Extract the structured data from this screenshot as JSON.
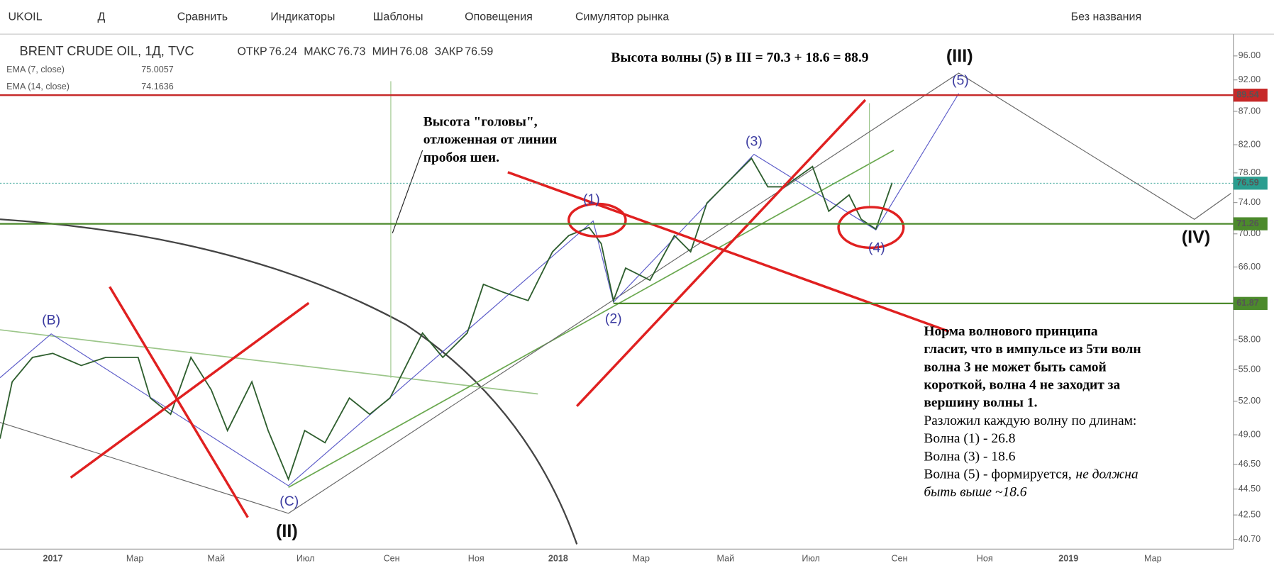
{
  "toolbar": {
    "symbol": "UKOIL",
    "interval": "Д",
    "items": [
      "Сравнить",
      "Индикаторы",
      "Шаблоны",
      "Оповещения",
      "Симулятор рынка"
    ],
    "layout_name": "Без названия"
  },
  "legend": {
    "title": "BRENT CRUDE OIL, 1Д, TVC",
    "ohlc": [
      {
        "label": "ОТКР",
        "value": "76.24"
      },
      {
        "label": "МАКС",
        "value": "76.73"
      },
      {
        "label": "МИН",
        "value": "76.08"
      },
      {
        "label": "ЗАКР",
        "value": "76.59"
      }
    ],
    "indicators": [
      {
        "name": "EMA (7, close)",
        "value": "75.0057",
        "color": "#b22222"
      },
      {
        "name": "EMA (14, close)",
        "value": "74.1636",
        "color": "#1f4f9f"
      }
    ]
  },
  "price_axis": {
    "log": true,
    "ylim": [
      40,
      99.5
    ],
    "ticks": [
      {
        "value": 96,
        "label": "96.00"
      },
      {
        "value": 92,
        "label": "92.00"
      },
      {
        "value": 87,
        "label": "87.00"
      },
      {
        "value": 82,
        "label": "82.00"
      },
      {
        "value": 78,
        "label": "78.00"
      },
      {
        "value": 74,
        "label": "74.00"
      },
      {
        "value": 70,
        "label": "70.00"
      },
      {
        "value": 66,
        "label": "66.00"
      },
      {
        "value": 58,
        "label": "58.00"
      },
      {
        "value": 55,
        "label": "55.00"
      },
      {
        "value": 52,
        "label": "52.00"
      },
      {
        "value": 49,
        "label": "49.00"
      },
      {
        "value": 46.5,
        "label": "46.50"
      },
      {
        "value": 44.5,
        "label": "44.50"
      },
      {
        "value": 42.5,
        "label": "42.50"
      },
      {
        "value": 40.7,
        "label": "40.70"
      }
    ],
    "tags": [
      {
        "value": 89.54,
        "label": "89.54",
        "color": "#c62828"
      },
      {
        "value": 76.59,
        "label": "76.59",
        "color": "#2a9d8f"
      },
      {
        "value": 71.26,
        "label": "71.26",
        "color": "#4c8a2c"
      },
      {
        "value": 61.87,
        "label": "61.87",
        "color": "#4c8a2c"
      }
    ]
  },
  "time_axis": [
    "2017",
    "Мар",
    "Май",
    "Июл",
    "Сен",
    "Ноя",
    "2018",
    "Мар",
    "Май",
    "Июл",
    "Сен",
    "Ноя",
    "2019",
    "Мар"
  ],
  "waves": [
    "(B)",
    "(C)",
    "(II)",
    "(1)",
    "(2)",
    "(3)",
    "(4)",
    "(5)",
    "(III)",
    "(IV)"
  ],
  "annotations": {
    "wave5_height": "Высота волны (5) в III = 70.3 + 18.6 = 88.9",
    "head": [
      "Высота \"головы\",",
      "отложенная от линии",
      "пробоя шеи."
    ],
    "rule": [
      "Норма волнового принципа",
      "гласит, что в импульсе из 5ти волн",
      "волна 3 не может быть самой",
      "короткой, волна 4 не заходит за",
      "вершину волны 1."
    ],
    "details": [
      "Разложил каждую волну по длинам:",
      "Волна (1) - 26.8",
      "Волна (3) - 18.6"
    ],
    "wave5": {
      "text": "Волна (5) - формируется,",
      "italic": [
        "не должна",
        "быть выше ~18.6"
      ]
    }
  }
}
